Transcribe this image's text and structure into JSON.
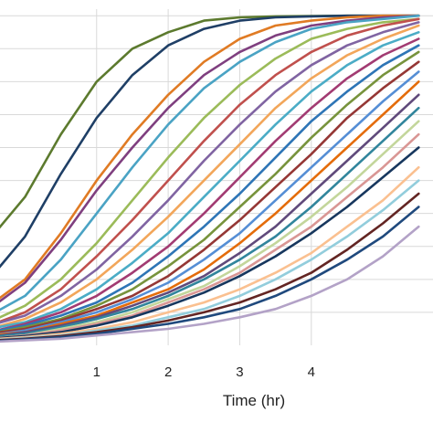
{
  "chart_data": {
    "type": "line",
    "title": "",
    "xlabel": "Time (hr)",
    "ylabel": "",
    "xlim": [
      -0.35,
      5.7
    ],
    "ylim": [
      0,
      1.02
    ],
    "x": [
      -0.5,
      0,
      0.5,
      1,
      1.5,
      2,
      2.5,
      3,
      3.5,
      4,
      4.5,
      5,
      5.5
    ],
    "x_ticks": [
      {
        "value": 1,
        "label": "1"
      },
      {
        "value": 2,
        "label": "2"
      },
      {
        "value": 3,
        "label": "3"
      },
      {
        "value": 4,
        "label": "4"
      }
    ],
    "y_gridlines": [
      0.1,
      0.2,
      0.3,
      0.4,
      0.5,
      0.6,
      0.7,
      0.8,
      0.9,
      1.0
    ],
    "grid": true,
    "legend": "none",
    "series": [
      {
        "color": "#5c7a2e",
        "values": [
          0.32,
          0.45,
          0.64,
          0.8,
          0.9,
          0.95,
          0.985,
          0.995,
          0.998,
          0.999,
          1.0,
          1.0,
          1.0
        ]
      },
      {
        "color": "#1f3f66",
        "values": [
          0.2,
          0.33,
          0.52,
          0.69,
          0.82,
          0.91,
          0.96,
          0.985,
          0.995,
          0.998,
          1.0,
          1.0,
          1.0
        ]
      },
      {
        "color": "#e07b24",
        "values": [
          0.12,
          0.2,
          0.34,
          0.5,
          0.64,
          0.76,
          0.86,
          0.93,
          0.97,
          0.985,
          0.995,
          1.0,
          1.0
        ]
      },
      {
        "color": "#7f3f7f",
        "values": [
          0.11,
          0.19,
          0.32,
          0.47,
          0.6,
          0.72,
          0.82,
          0.89,
          0.94,
          0.97,
          0.985,
          0.995,
          1.0
        ]
      },
      {
        "color": "#4aa3c4",
        "values": [
          0.09,
          0.15,
          0.26,
          0.4,
          0.54,
          0.67,
          0.78,
          0.86,
          0.92,
          0.96,
          0.98,
          0.99,
          1.0
        ]
      },
      {
        "color": "#9bbb59",
        "values": [
          0.07,
          0.12,
          0.2,
          0.31,
          0.44,
          0.57,
          0.69,
          0.79,
          0.87,
          0.93,
          0.96,
          0.98,
          0.99
        ]
      },
      {
        "color": "#c0504d",
        "values": [
          0.06,
          0.1,
          0.17,
          0.27,
          0.38,
          0.5,
          0.62,
          0.73,
          0.82,
          0.89,
          0.94,
          0.97,
          0.99
        ]
      },
      {
        "color": "#8064a2",
        "values": [
          0.06,
          0.09,
          0.15,
          0.23,
          0.33,
          0.44,
          0.56,
          0.67,
          0.77,
          0.85,
          0.91,
          0.95,
          0.98
        ]
      },
      {
        "color": "#f2a65a",
        "values": [
          0.05,
          0.08,
          0.13,
          0.2,
          0.29,
          0.39,
          0.5,
          0.61,
          0.72,
          0.81,
          0.88,
          0.93,
          0.97
        ]
      },
      {
        "color": "#4bacc6",
        "values": [
          0.05,
          0.07,
          0.11,
          0.17,
          0.25,
          0.34,
          0.45,
          0.56,
          0.67,
          0.77,
          0.85,
          0.91,
          0.95
        ]
      },
      {
        "color": "#a23b72",
        "values": [
          0.04,
          0.065,
          0.1,
          0.15,
          0.22,
          0.3,
          0.4,
          0.51,
          0.62,
          0.72,
          0.81,
          0.88,
          0.93
        ]
      },
      {
        "color": "#2e75b6",
        "values": [
          0.04,
          0.06,
          0.09,
          0.13,
          0.19,
          0.27,
          0.36,
          0.46,
          0.57,
          0.68,
          0.77,
          0.85,
          0.91
        ]
      },
      {
        "color": "#77933c",
        "values": [
          0.035,
          0.055,
          0.08,
          0.12,
          0.17,
          0.24,
          0.32,
          0.42,
          0.52,
          0.63,
          0.73,
          0.82,
          0.89
        ]
      },
      {
        "color": "#953735",
        "values": [
          0.035,
          0.05,
          0.075,
          0.11,
          0.15,
          0.21,
          0.29,
          0.38,
          0.48,
          0.58,
          0.69,
          0.78,
          0.86
        ]
      },
      {
        "color": "#558ed5",
        "values": [
          0.03,
          0.045,
          0.07,
          0.1,
          0.14,
          0.19,
          0.26,
          0.34,
          0.44,
          0.54,
          0.64,
          0.74,
          0.83
        ]
      },
      {
        "color": "#e46c0a",
        "values": [
          0.03,
          0.04,
          0.065,
          0.09,
          0.13,
          0.17,
          0.23,
          0.31,
          0.4,
          0.5,
          0.6,
          0.7,
          0.8
        ]
      },
      {
        "color": "#604a7b",
        "values": [
          0.025,
          0.04,
          0.06,
          0.085,
          0.12,
          0.16,
          0.21,
          0.28,
          0.36,
          0.46,
          0.56,
          0.66,
          0.76
        ]
      },
      {
        "color": "#31859c",
        "values": [
          0.025,
          0.035,
          0.055,
          0.08,
          0.11,
          0.15,
          0.2,
          0.26,
          0.33,
          0.42,
          0.52,
          0.62,
          0.72
        ]
      },
      {
        "color": "#c3d69b",
        "values": [
          0.02,
          0.03,
          0.05,
          0.07,
          0.1,
          0.14,
          0.18,
          0.24,
          0.31,
          0.39,
          0.48,
          0.58,
          0.68
        ]
      },
      {
        "color": "#d99694",
        "values": [
          0.02,
          0.03,
          0.045,
          0.065,
          0.09,
          0.13,
          0.17,
          0.22,
          0.29,
          0.36,
          0.45,
          0.54,
          0.64
        ]
      },
      {
        "color": "#17375e",
        "values": [
          0.02,
          0.028,
          0.04,
          0.06,
          0.085,
          0.12,
          0.16,
          0.21,
          0.27,
          0.34,
          0.42,
          0.51,
          0.6
        ]
      },
      {
        "color": "#fac090",
        "values": [
          0.018,
          0.025,
          0.035,
          0.05,
          0.07,
          0.1,
          0.13,
          0.17,
          0.22,
          0.28,
          0.36,
          0.44,
          0.54
        ]
      },
      {
        "color": "#92cddc",
        "values": [
          0.015,
          0.022,
          0.03,
          0.045,
          0.06,
          0.085,
          0.11,
          0.15,
          0.2,
          0.26,
          0.33,
          0.41,
          0.5
        ]
      },
      {
        "color": "#632523",
        "values": [
          0.014,
          0.02,
          0.028,
          0.04,
          0.055,
          0.075,
          0.1,
          0.13,
          0.17,
          0.22,
          0.29,
          0.37,
          0.46
        ]
      },
      {
        "color": "#1f497d",
        "values": [
          0.012,
          0.018,
          0.025,
          0.035,
          0.05,
          0.065,
          0.085,
          0.11,
          0.15,
          0.2,
          0.26,
          0.33,
          0.42
        ]
      },
      {
        "color": "#b3a2c7",
        "values": [
          0.01,
          0.015,
          0.02,
          0.03,
          0.04,
          0.05,
          0.065,
          0.085,
          0.11,
          0.15,
          0.2,
          0.27,
          0.36
        ]
      }
    ]
  }
}
